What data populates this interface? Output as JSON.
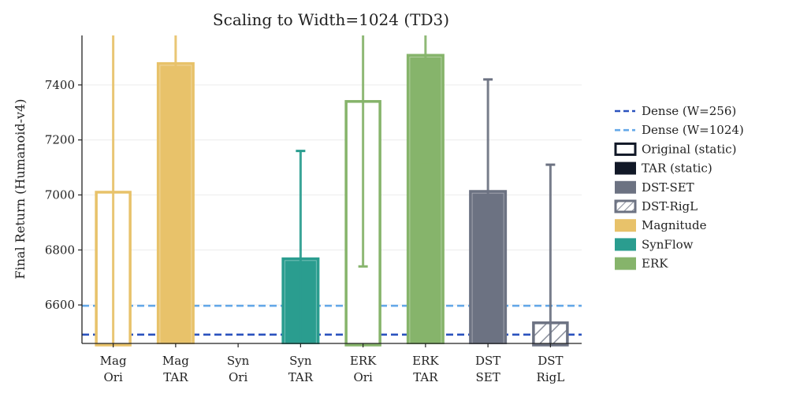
{
  "chart_data": {
    "type": "bar",
    "title": "Scaling to Width=1024 (TD3)",
    "xlabel": "",
    "ylabel": "Final Return (Humanoid-v4)",
    "ylim": [
      6460,
      7580
    ],
    "yticks": [
      6600,
      6800,
      7000,
      7200,
      7400
    ],
    "grid": "horizontal",
    "legend_position": "right",
    "categories": [
      {
        "line1": "Mag",
        "line2": "Ori"
      },
      {
        "line1": "Mag",
        "line2": "TAR"
      },
      {
        "line1": "Syn",
        "line2": "Ori"
      },
      {
        "line1": "Syn",
        "line2": "TAR"
      },
      {
        "line1": "ERK",
        "line2": "Ori"
      },
      {
        "line1": "ERK",
        "line2": "TAR"
      },
      {
        "line1": "DST",
        "line2": "SET"
      },
      {
        "line1": "DST",
        "line2": "RigL"
      }
    ],
    "bars": [
      {
        "value": 7010,
        "err_low": 6460,
        "err_high": 7580,
        "style": "outline",
        "color": "#e8c26a"
      },
      {
        "value": 7480,
        "err_low": 7140,
        "err_high": 7580,
        "style": "filled",
        "color": "#e8c26a"
      },
      {
        "value": null,
        "err_low": null,
        "err_high": null,
        "style": "none",
        "color": "#2a9d8f"
      },
      {
        "value": 6770,
        "err_low": 6460,
        "err_high": 7160,
        "style": "filled",
        "color": "#2a9d8f"
      },
      {
        "value": 7340,
        "err_low": 6740,
        "err_high": 7580,
        "style": "outline",
        "color": "#86b46b"
      },
      {
        "value": 7510,
        "err_low": 7110,
        "err_high": 7580,
        "style": "filled",
        "color": "#86b46b"
      },
      {
        "value": 7015,
        "err_low": 6600,
        "err_high": 7420,
        "style": "filled",
        "color": "#6c7282"
      },
      {
        "value": 6535,
        "err_low": 6460,
        "err_high": 7110,
        "style": "hatched",
        "color": "#6c7282"
      }
    ],
    "reference_lines": [
      {
        "name": "Dense (W=256)",
        "value": 6492,
        "color": "#2a52be"
      },
      {
        "name": "Dense (W=1024)",
        "value": 6597,
        "color": "#64a8e8"
      }
    ],
    "legend": [
      {
        "label": "Dense (W=256)",
        "kind": "dash",
        "color": "#2a52be"
      },
      {
        "label": "Dense (W=1024)",
        "kind": "dash",
        "color": "#64a8e8"
      },
      {
        "label": "Original (static)",
        "kind": "outline",
        "color": "#111827"
      },
      {
        "label": "TAR (static)",
        "kind": "filled",
        "color": "#111827"
      },
      {
        "label": "DST-SET",
        "kind": "filled",
        "color": "#6c7282"
      },
      {
        "label": "DST-RigL",
        "kind": "hatched",
        "color": "#6c7282"
      },
      {
        "label": "Magnitude",
        "kind": "filled",
        "color": "#e8c26a"
      },
      {
        "label": "SynFlow",
        "kind": "filled",
        "color": "#2a9d8f"
      },
      {
        "label": "ERK",
        "kind": "filled",
        "color": "#86b46b"
      }
    ]
  }
}
